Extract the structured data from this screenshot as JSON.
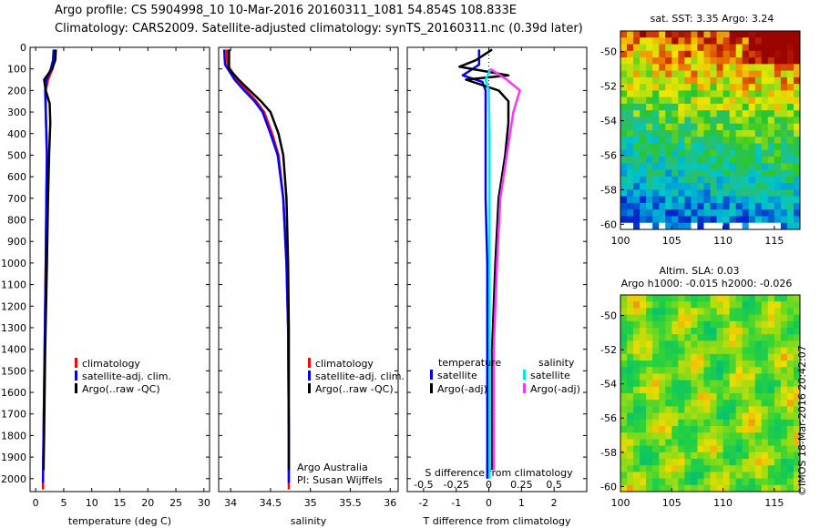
{
  "header": {
    "line1": "Argo profile: CS 5904998_10 10-Mar-2016 20160311_1081 54.854S 108.833E",
    "line2": "Climatology: CARS2009. Satellite-adjusted climatology: synTS_20160311.nc (0.39d later)"
  },
  "colors": {
    "climatology": "#ff0000",
    "satellite_adj": "#0000ff",
    "argo": "#000000",
    "satellite_salinity": "#00e5ee",
    "argo_adj_salinity": "#ff33ff"
  },
  "chart_data": [
    {
      "type": "line",
      "id": "temperature",
      "xlabel": "temperature (deg C)",
      "xlim": [
        -1,
        31
      ],
      "xticks": [
        0,
        5,
        10,
        15,
        20,
        25,
        30
      ],
      "ylim": [
        2060,
        0
      ],
      "yticks": [
        0,
        100,
        200,
        300,
        400,
        500,
        600,
        700,
        800,
        900,
        1000,
        1100,
        1200,
        1300,
        1400,
        1500,
        1600,
        1700,
        1800,
        1900,
        2000
      ],
      "legend": [
        "climatology",
        "satellite-adj. clim.",
        "Argo(..raw -QC)"
      ],
      "series": [
        {
          "name": "climatology",
          "color_key": "climatology",
          "points": [
            [
              3.5,
              10
            ],
            [
              3.4,
              60
            ],
            [
              3.0,
              100
            ],
            [
              2.2,
              150
            ],
            [
              1.8,
              200
            ],
            [
              1.8,
              300
            ],
            [
              1.9,
              400
            ],
            [
              2.0,
              500
            ],
            [
              1.9,
              700
            ],
            [
              1.8,
              1000
            ],
            [
              1.6,
              1400
            ],
            [
              1.4,
              1800
            ],
            [
              1.3,
              2000
            ],
            [
              1.3,
              2050
            ]
          ]
        },
        {
          "name": "satellite-adj. clim.",
          "color_key": "satellite_adj",
          "points": [
            [
              3.2,
              10
            ],
            [
              3.1,
              60
            ],
            [
              2.7,
              100
            ],
            [
              1.9,
              150
            ],
            [
              1.7,
              200
            ],
            [
              1.8,
              300
            ],
            [
              1.9,
              400
            ],
            [
              2.0,
              500
            ],
            [
              1.9,
              700
            ],
            [
              1.8,
              1000
            ],
            [
              1.6,
              1400
            ],
            [
              1.4,
              1800
            ],
            [
              1.3,
              2000
            ],
            [
              1.3,
              2020
            ]
          ]
        },
        {
          "name": "Argo(..raw -QC)",
          "color_key": "argo",
          "points": [
            [
              3.6,
              10
            ],
            [
              3.5,
              60
            ],
            [
              2.9,
              100
            ],
            [
              1.5,
              150
            ],
            [
              1.8,
              200
            ],
            [
              2.5,
              260
            ],
            [
              2.6,
              350
            ],
            [
              2.4,
              500
            ],
            [
              2.2,
              700
            ],
            [
              2.0,
              1000
            ],
            [
              1.7,
              1400
            ],
            [
              1.5,
              1800
            ],
            [
              1.4,
              1960
            ]
          ]
        }
      ]
    },
    {
      "type": "line",
      "id": "salinity",
      "xlabel": "salinity",
      "xlim": [
        33.85,
        36.1
      ],
      "xticks": [
        34,
        34.5,
        35,
        35.5,
        36
      ],
      "ylim": [
        2060,
        0
      ],
      "legend": [
        "climatology",
        "satellite-adj. clim.",
        "Argo(..raw -QC)"
      ],
      "annotation": [
        "Argo Australia",
        "PI: Susan Wijffels"
      ],
      "series": [
        {
          "name": "climatology",
          "color_key": "climatology",
          "points": [
            [
              33.95,
              10
            ],
            [
              33.96,
              80
            ],
            [
              34.08,
              150
            ],
            [
              34.2,
              200
            ],
            [
              34.32,
              250
            ],
            [
              34.42,
              300
            ],
            [
              34.52,
              400
            ],
            [
              34.6,
              500
            ],
            [
              34.66,
              700
            ],
            [
              34.7,
              1000
            ],
            [
              34.72,
              1300
            ],
            [
              34.73,
              1800
            ],
            [
              34.73,
              2050
            ]
          ]
        },
        {
          "name": "satellite-adj. clim.",
          "color_key": "satellite_adj",
          "points": [
            [
              33.92,
              10
            ],
            [
              33.93,
              80
            ],
            [
              34.05,
              150
            ],
            [
              34.17,
              200
            ],
            [
              34.3,
              250
            ],
            [
              34.4,
              300
            ],
            [
              34.5,
              400
            ],
            [
              34.59,
              500
            ],
            [
              34.66,
              700
            ],
            [
              34.7,
              1000
            ],
            [
              34.72,
              1300
            ],
            [
              34.73,
              1800
            ],
            [
              34.73,
              2020
            ]
          ]
        },
        {
          "name": "Argo(..raw -QC)",
          "color_key": "argo",
          "points": [
            [
              33.98,
              10
            ],
            [
              33.98,
              100
            ],
            [
              34.1,
              150
            ],
            [
              34.24,
              200
            ],
            [
              34.38,
              250
            ],
            [
              34.5,
              300
            ],
            [
              34.6,
              400
            ],
            [
              34.66,
              500
            ],
            [
              34.7,
              700
            ],
            [
              34.72,
              1000
            ],
            [
              34.73,
              1300
            ],
            [
              34.73,
              1800
            ],
            [
              34.73,
              1960
            ]
          ]
        }
      ]
    },
    {
      "type": "line",
      "id": "differences",
      "xlabel": "T difference from climatology",
      "top_axis_label": "S difference from climatology",
      "xlim": [
        -2.5,
        3
      ],
      "xticks": [
        -2,
        -1,
        0,
        1,
        2
      ],
      "top_xlim": [
        -0.625,
        0.75
      ],
      "top_xticks": [
        -0.5,
        -0.25,
        0,
        0.25,
        0.5
      ],
      "top_xtick_labels": [
        "-0.5",
        "-0.25",
        "0",
        "0.25",
        "0.5"
      ],
      "ylim": [
        2060,
        0
      ],
      "legend_groups": [
        {
          "title": "temperature",
          "items": [
            "satellite",
            "Argo(-adj)"
          ]
        },
        {
          "title": "salinity",
          "items": [
            "satellite",
            "Argo(-adj)"
          ]
        }
      ],
      "series": [
        {
          "name": "temperature satellite",
          "color_key": "satellite_adj",
          "points": [
            [
              -0.3,
              10
            ],
            [
              -0.3,
              80
            ],
            [
              -0.8,
              130
            ],
            [
              -0.2,
              160
            ],
            [
              -0.1,
              200
            ],
            [
              -0.1,
              300
            ],
            [
              -0.1,
              500
            ],
            [
              -0.1,
              700
            ],
            [
              -0.05,
              1000
            ],
            [
              -0.05,
              1400
            ],
            [
              -0.05,
              1800
            ],
            [
              -0.05,
              2000
            ]
          ]
        },
        {
          "name": "temperature Argo(-adj)",
          "color_key": "argo",
          "points": [
            [
              0.1,
              10
            ],
            [
              -0.4,
              60
            ],
            [
              -0.9,
              90
            ],
            [
              0.6,
              130
            ],
            [
              -0.7,
              150
            ],
            [
              0.3,
              200
            ],
            [
              0.6,
              250
            ],
            [
              0.6,
              350
            ],
            [
              0.5,
              500
            ],
            [
              0.3,
              700
            ],
            [
              0.2,
              1000
            ],
            [
              0.1,
              1400
            ],
            [
              0.1,
              1800
            ],
            [
              0.1,
              1960
            ]
          ]
        },
        {
          "name": "salinity satellite",
          "color_key": "satellite_salinity",
          "points": [
            [
              0.05,
              100
            ],
            [
              -0.1,
              150
            ],
            [
              0.0,
              200
            ],
            [
              0.02,
              400
            ],
            [
              0.02,
              800
            ],
            [
              0.02,
              1200
            ],
            [
              0.02,
              1600
            ],
            [
              0.02,
              2000
            ]
          ]
        },
        {
          "name": "salinity Argo(-adj)",
          "color_key": "argo_adj_salinity",
          "points": [
            [
              0.05,
              100
            ],
            [
              0.55,
              150
            ],
            [
              0.95,
              200
            ],
            [
              0.75,
              300
            ],
            [
              0.55,
              500
            ],
            [
              0.35,
              700
            ],
            [
              0.25,
              1000
            ],
            [
              0.15,
              1400
            ],
            [
              0.15,
              1800
            ],
            [
              0.15,
              1960
            ]
          ]
        }
      ]
    },
    {
      "type": "heatmap",
      "id": "sst-map",
      "title": "sat. SST: 3.35 Argo: 3.24",
      "xlim": [
        100,
        117.5
      ],
      "ylim": [
        -60.3,
        -48.8
      ],
      "xticks": [
        100,
        105,
        110,
        115
      ],
      "yticks": [
        -50,
        -52,
        -54,
        -56,
        -58,
        -60
      ],
      "ytick_labels": [
        "-50",
        "-52",
        "-54",
        "-56",
        "-58",
        "-60"
      ]
    },
    {
      "type": "heatmap",
      "id": "sla-map",
      "title_lines": [
        "Altim. SLA: 0.03",
        "Argo h1000: -0.015 h2000: -0.026"
      ],
      "xlim": [
        100,
        117.5
      ],
      "ylim": [
        -60.3,
        -48.8
      ],
      "xticks": [
        100,
        105,
        110,
        115
      ],
      "yticks": [
        -50,
        -52,
        -54,
        -56,
        -58,
        -60
      ],
      "ytick_labels": [
        "-50",
        "-52",
        "-54",
        "-56",
        "-58",
        "-60"
      ]
    }
  ],
  "footer": {
    "credit": "©IMOS 18-Mar-2016 20:42:07"
  }
}
